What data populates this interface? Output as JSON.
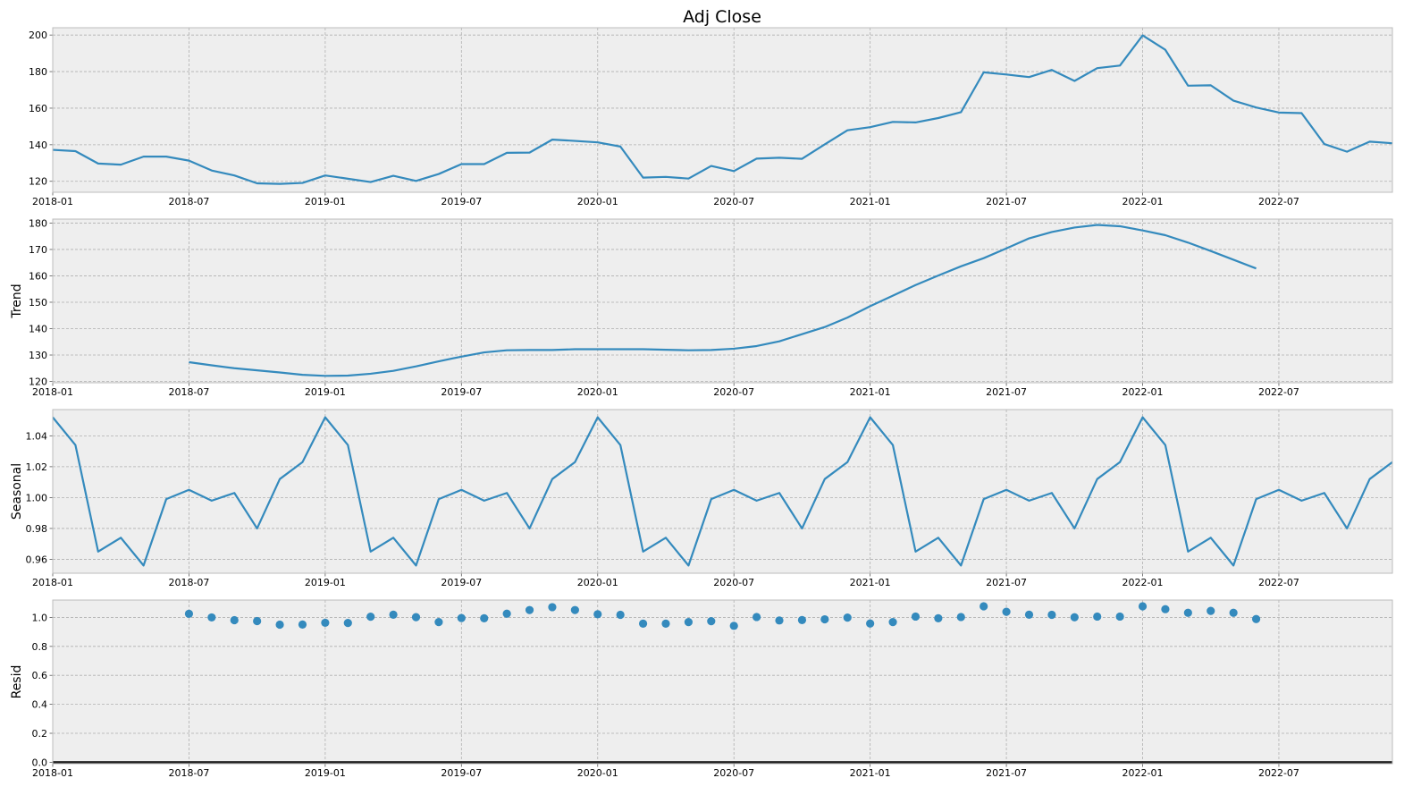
{
  "figure": {
    "title": "Adj Close"
  },
  "chart_data": [
    {
      "type": "line",
      "name": "observed",
      "title": "Adj Close",
      "ylabel": "",
      "xlim": [
        "2018-01",
        "2022-12"
      ],
      "ylim": [
        114,
        204
      ],
      "yticks": [
        120,
        140,
        160,
        180,
        200
      ],
      "x_tick_labels": [
        "2018-01",
        "2018-07",
        "2019-01",
        "2019-07",
        "2020-01",
        "2020-07",
        "2021-01",
        "2021-07",
        "2022-01",
        "2022-07"
      ],
      "grid": true,
      "start": "2018-01",
      "values": [
        137.2,
        136.5,
        129.7,
        129.1,
        133.5,
        133.5,
        131.3,
        125.9,
        123.2,
        118.9,
        118.6,
        119.1,
        123.2,
        121.4,
        119.6,
        123.0,
        120.2,
        124.0,
        129.4,
        129.4,
        135.6,
        135.7,
        142.8,
        142.1,
        141.3,
        139.0,
        122.0,
        122.4,
        121.5,
        128.4,
        125.6,
        132.4,
        132.9,
        132.3,
        140.2,
        147.9,
        149.6,
        152.5,
        152.2,
        154.6,
        157.8,
        179.6,
        178.4,
        177.0,
        180.9,
        174.9,
        181.9,
        183.3,
        199.8,
        191.9,
        172.3,
        172.5,
        164.1,
        160.4,
        157.6,
        157.3,
        140.4,
        136.2,
        141.7,
        140.8
      ],
      "color": "#348abd"
    },
    {
      "type": "line",
      "name": "trend",
      "ylabel": "Trend",
      "xlim": [
        "2018-01",
        "2022-12"
      ],
      "ylim": [
        119.5,
        181.5
      ],
      "yticks": [
        120,
        130,
        140,
        150,
        160,
        170,
        180
      ],
      "x_tick_labels": [
        "2018-01",
        "2018-07",
        "2019-01",
        "2019-07",
        "2020-01",
        "2020-07",
        "2021-01",
        "2021-07",
        "2022-01",
        "2022-07"
      ],
      "grid": true,
      "start": "2018-07",
      "values": [
        127.3,
        126.1,
        125.0,
        124.2,
        123.4,
        122.5,
        122.1,
        122.2,
        122.9,
        124.0,
        125.7,
        127.6,
        129.4,
        131.0,
        131.8,
        131.9,
        131.9,
        132.2,
        132.2,
        132.2,
        132.2,
        132.0,
        131.8,
        131.9,
        132.4,
        133.4,
        135.2,
        137.9,
        140.6,
        144.2,
        148.5,
        152.5,
        156.5,
        160.1,
        163.6,
        166.7,
        170.4,
        174.2,
        176.6,
        178.3,
        179.3,
        178.8,
        177.2,
        175.4,
        172.6,
        169.4,
        166.1,
        162.8
      ],
      "color": "#348abd"
    },
    {
      "type": "line",
      "name": "seasonal",
      "ylabel": "Seasonal",
      "xlim": [
        "2018-01",
        "2022-12"
      ],
      "ylim": [
        0.951,
        1.057
      ],
      "yticks": [
        0.96,
        0.98,
        1.0,
        1.02,
        1.04
      ],
      "x_tick_labels": [
        "2018-01",
        "2018-07",
        "2019-01",
        "2019-07",
        "2020-01",
        "2020-07",
        "2021-01",
        "2021-07",
        "2022-01",
        "2022-07"
      ],
      "grid": true,
      "start": "2018-01",
      "pattern": [
        1.052,
        1.034,
        0.965,
        0.974,
        0.956,
        0.999,
        1.005,
        0.998,
        1.003,
        0.98,
        1.012,
        1.023
      ],
      "periods": 5,
      "color": "#348abd"
    },
    {
      "type": "scatter",
      "name": "resid",
      "ylabel": "Resid",
      "xlim": [
        "2018-01",
        "2022-12"
      ],
      "ylim": [
        -0.01,
        1.12
      ],
      "yticks": [
        0.0,
        0.2,
        0.4,
        0.6,
        0.8,
        1.0
      ],
      "x_tick_labels": [
        "2018-01",
        "2018-07",
        "2019-01",
        "2019-07",
        "2020-01",
        "2020-07",
        "2021-01",
        "2021-07",
        "2022-01",
        "2022-07"
      ],
      "grid": true,
      "start": "2018-07",
      "values": [
        1.025,
        1.0,
        0.981,
        0.975,
        0.95,
        0.951,
        0.963,
        0.962,
        1.005,
        1.019,
        1.002,
        0.968,
        0.996,
        0.994,
        1.026,
        1.051,
        1.071,
        1.051,
        1.022,
        1.018,
        0.957,
        0.957,
        0.968,
        0.974,
        0.942,
        1.003,
        0.979,
        0.982,
        0.987,
        0.999,
        0.958,
        0.968,
        1.006,
        0.994,
        1.003,
        1.077,
        1.039,
        1.019,
        1.018,
        1.001,
        1.006,
        1.006,
        1.077,
        1.057,
        1.032,
        1.045,
        1.032,
        0.989
      ],
      "zero_line": 0,
      "color": "#348abd"
    }
  ]
}
